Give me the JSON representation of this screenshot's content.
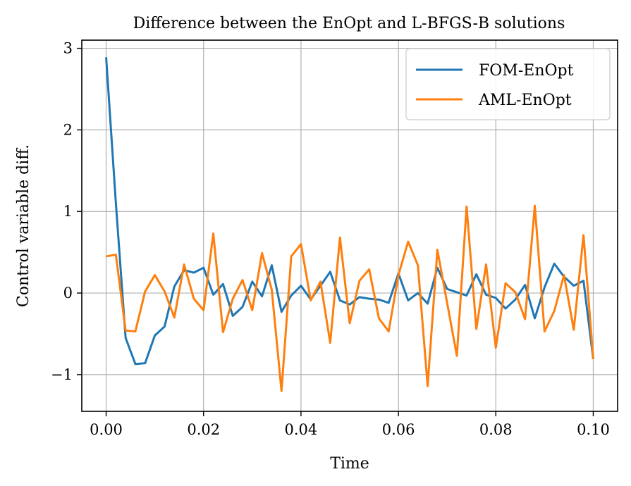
{
  "chart_data": {
    "type": "line",
    "title": "Difference between the EnOpt and L-BFGS-B solutions",
    "xlabel": "Time",
    "ylabel": "Control variable diff.",
    "xlim": [
      -0.005,
      0.105
    ],
    "ylim": [
      -1.45,
      3.1
    ],
    "xticks": [
      0.0,
      0.02,
      0.04,
      0.06,
      0.08,
      0.1
    ],
    "xtick_labels": [
      "0.00",
      "0.02",
      "0.04",
      "0.06",
      "0.08",
      "0.10"
    ],
    "yticks": [
      -1,
      0,
      1,
      2,
      3
    ],
    "ytick_labels": [
      "−1",
      "0",
      "1",
      "2",
      "3"
    ],
    "grid": true,
    "legend_position": "top-right",
    "x": [
      0.0,
      0.002,
      0.004,
      0.006,
      0.008,
      0.01,
      0.012,
      0.014,
      0.016,
      0.018,
      0.02,
      0.022,
      0.024,
      0.026,
      0.028,
      0.03,
      0.032,
      0.034,
      0.036,
      0.038,
      0.04,
      0.042,
      0.044,
      0.046,
      0.048,
      0.05,
      0.052,
      0.054,
      0.056,
      0.058,
      0.06,
      0.062,
      0.064,
      0.066,
      0.068,
      0.07,
      0.072,
      0.074,
      0.076,
      0.078,
      0.08,
      0.082,
      0.084,
      0.086,
      0.088,
      0.09,
      0.092,
      0.094,
      0.096,
      0.098,
      0.1
    ],
    "series": [
      {
        "name": "FOM-EnOpt",
        "color": "#1f77b4",
        "values": [
          2.89,
          1.1,
          -0.55,
          -0.87,
          -0.86,
          -0.52,
          -0.41,
          0.08,
          0.28,
          0.25,
          0.31,
          -0.02,
          0.11,
          -0.28,
          -0.17,
          0.14,
          -0.04,
          0.34,
          -0.23,
          -0.03,
          0.09,
          -0.08,
          0.09,
          0.26,
          -0.09,
          -0.14,
          -0.05,
          -0.07,
          -0.08,
          -0.12,
          0.24,
          -0.09,
          0.0,
          -0.13,
          0.31,
          0.05,
          0.01,
          -0.03,
          0.23,
          -0.02,
          -0.06,
          -0.19,
          -0.08,
          0.1,
          -0.31,
          0.07,
          0.36,
          0.2,
          0.09,
          0.15,
          -0.81
        ]
      },
      {
        "name": "AML-EnOpt",
        "color": "#ff7f0e",
        "values": [
          0.45,
          0.47,
          -0.46,
          -0.47,
          0.02,
          0.22,
          0.02,
          -0.3,
          0.35,
          -0.07,
          -0.21,
          0.73,
          -0.48,
          -0.07,
          0.16,
          -0.21,
          0.49,
          0.04,
          -1.2,
          0.45,
          0.6,
          -0.09,
          0.14,
          -0.61,
          0.68,
          -0.37,
          0.15,
          0.29,
          -0.31,
          -0.47,
          0.22,
          0.63,
          0.34,
          -1.14,
          0.53,
          -0.12,
          -0.77,
          1.06,
          -0.44,
          0.35,
          -0.67,
          0.12,
          0.01,
          -0.32,
          1.07,
          -0.47,
          -0.22,
          0.22,
          -0.45,
          0.71,
          -0.81
        ]
      }
    ]
  }
}
